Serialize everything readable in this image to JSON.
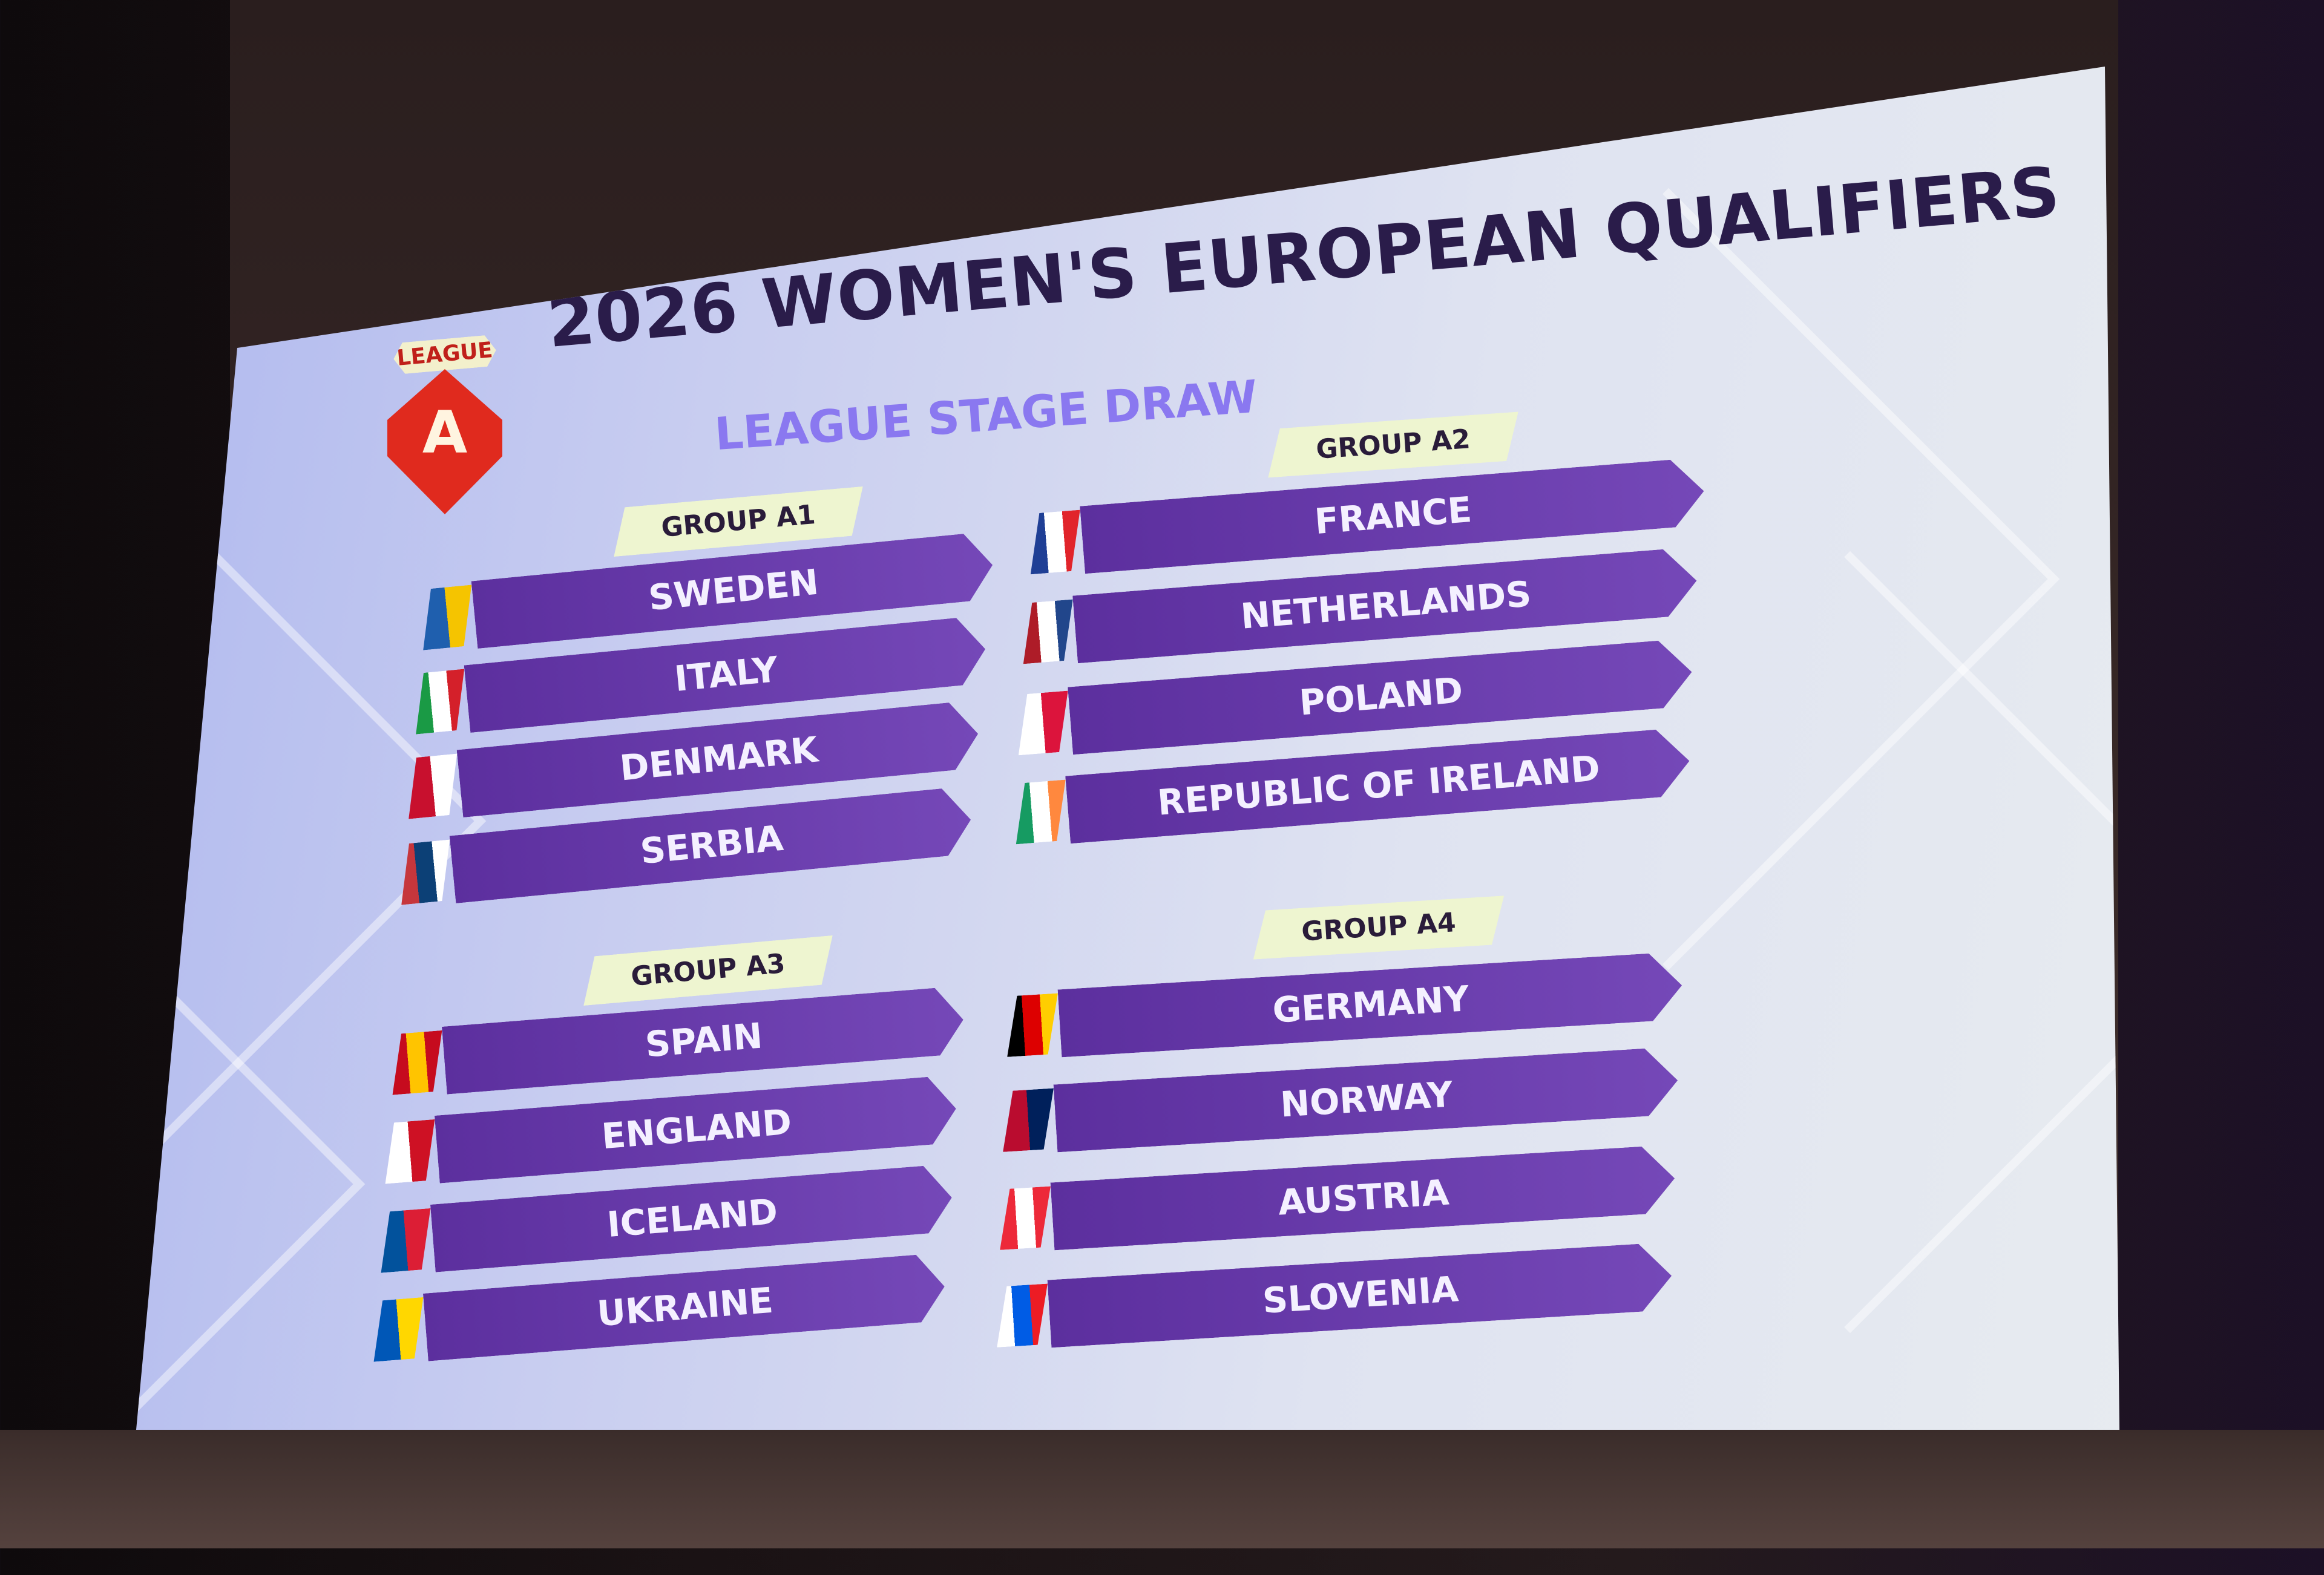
{
  "slide": {
    "logo": {
      "tag": "LEAGUE",
      "letter": "A",
      "color": "#e02a1e"
    },
    "title": "2026 WOMEN'S EUROPEAN QUALIFIERS",
    "subtitle": "LEAGUE STAGE DRAW",
    "groups": [
      {
        "label": "GROUP A1",
        "teams": [
          {
            "name": "SWEDEN",
            "flag": [
              "#1f5fae",
              "#f5c400"
            ]
          },
          {
            "name": "ITALY",
            "flag": [
              "#1a9a45",
              "#ffffff",
              "#d4202a"
            ]
          },
          {
            "name": "DENMARK",
            "flag": [
              "#c8102e",
              "#ffffff"
            ]
          },
          {
            "name": "SERBIA",
            "flag": [
              "#c6363c",
              "#0c4076",
              "#ffffff"
            ]
          }
        ]
      },
      {
        "label": "GROUP A2",
        "teams": [
          {
            "name": "FRANCE",
            "flag": [
              "#1f3f95",
              "#ffffff",
              "#e1242b"
            ]
          },
          {
            "name": "NETHERLANDS",
            "flag": [
              "#ae1c28",
              "#ffffff",
              "#21468b"
            ]
          },
          {
            "name": "POLAND",
            "flag": [
              "#ffffff",
              "#dc143c"
            ]
          },
          {
            "name": "REPUBLIC OF IRELAND",
            "flag": [
              "#169b62",
              "#ffffff",
              "#ff883e"
            ]
          }
        ]
      },
      {
        "label": "GROUP A3",
        "teams": [
          {
            "name": "SPAIN",
            "flag": [
              "#c60b1e",
              "#ffc400",
              "#c60b1e"
            ]
          },
          {
            "name": "ENGLAND",
            "flag": [
              "#ffffff",
              "#ce1124"
            ]
          },
          {
            "name": "ICELAND",
            "flag": [
              "#02529c",
              "#dc1e35"
            ]
          },
          {
            "name": "UKRAINE",
            "flag": [
              "#0057b7",
              "#ffd700"
            ]
          }
        ]
      },
      {
        "label": "GROUP A4",
        "teams": [
          {
            "name": "GERMANY",
            "flag": [
              "#000000",
              "#dd0000",
              "#ffce00"
            ]
          },
          {
            "name": "NORWAY",
            "flag": [
              "#ba0c2f",
              "#00205b"
            ]
          },
          {
            "name": "AUSTRIA",
            "flag": [
              "#ed2939",
              "#ffffff",
              "#ed2939"
            ]
          },
          {
            "name": "SLOVENIA",
            "flag": [
              "#ffffff",
              "#005ce5",
              "#ed1c24"
            ]
          }
        ]
      }
    ]
  }
}
